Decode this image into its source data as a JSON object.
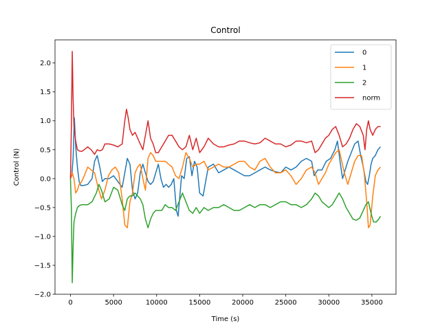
{
  "chart_data": {
    "type": "line",
    "title": "Control",
    "xlabel": "Time (s)",
    "ylabel": "Control (N)",
    "xlim": [
      -1800,
      37800
    ],
    "ylim": [
      -2.0,
      2.4
    ],
    "xticks": [
      0,
      5000,
      10000,
      15000,
      20000,
      25000,
      30000,
      35000
    ],
    "yticks": [
      -2.0,
      -1.5,
      -1.0,
      -0.5,
      0.0,
      0.5,
      1.0,
      1.5,
      2.0
    ],
    "legend": "top-right",
    "grid": false,
    "series": [
      {
        "name": "0",
        "color": "#1f77b4",
        "x": [
          0,
          150,
          300,
          450,
          600,
          800,
          1000,
          1200,
          1500,
          2000,
          2500,
          2800,
          3100,
          3400,
          3700,
          4000,
          4500,
          5000,
          5500,
          6000,
          6300,
          6600,
          6900,
          7200,
          7500,
          7800,
          8100,
          8400,
          8700,
          9000,
          9300,
          9600,
          9900,
          10200,
          10500,
          10800,
          11100,
          11400,
          11700,
          12000,
          12300,
          12500,
          12700,
          12900,
          13200,
          13500,
          13800,
          14100,
          14400,
          14700,
          15000,
          15400,
          16000,
          16600,
          17200,
          17800,
          18400,
          19000,
          19600,
          20200,
          20800,
          21400,
          22000,
          22600,
          23200,
          23800,
          24400,
          25000,
          25600,
          26200,
          26800,
          27400,
          28000,
          28300,
          28700,
          29200,
          29700,
          30200,
          30700,
          31000,
          31300,
          31600,
          31900,
          32200,
          32600,
          33000,
          33400,
          33700,
          34000,
          34300,
          34500,
          34700,
          34900,
          35100,
          35400,
          35700,
          36000
        ],
        "y": [
          0.0,
          0.05,
          0.35,
          1.05,
          0.55,
          0.2,
          -0.05,
          -0.12,
          -0.12,
          -0.1,
          0.0,
          0.3,
          0.4,
          0.2,
          -0.05,
          0.0,
          0.0,
          0.05,
          -0.05,
          -0.15,
          0.1,
          0.35,
          0.25,
          -0.2,
          -0.35,
          -0.25,
          0.1,
          0.25,
          0.1,
          -0.05,
          -0.1,
          -0.05,
          0.1,
          0.25,
          0.0,
          -0.15,
          -0.1,
          -0.15,
          -0.1,
          0.0,
          -0.55,
          -0.65,
          -0.3,
          0.05,
          0.0,
          0.35,
          0.38,
          0.05,
          0.3,
          0.2,
          -0.25,
          -0.3,
          0.2,
          0.25,
          0.1,
          0.15,
          0.2,
          0.15,
          0.1,
          0.05,
          0.05,
          0.1,
          0.15,
          0.2,
          0.15,
          0.12,
          0.1,
          0.2,
          0.15,
          0.2,
          0.3,
          0.35,
          0.3,
          0.05,
          0.15,
          0.15,
          0.3,
          0.35,
          0.5,
          0.65,
          0.3,
          0.0,
          0.15,
          0.3,
          0.45,
          0.6,
          0.65,
          0.4,
          0.2,
          -0.05,
          -0.1,
          0.05,
          0.25,
          0.35,
          0.4,
          0.5,
          0.55
        ]
      },
      {
        "name": "1",
        "color": "#ff7f0e",
        "x": [
          0,
          200,
          400,
          600,
          800,
          1000,
          1300,
          1600,
          2000,
          2400,
          2800,
          3200,
          3600,
          4000,
          4400,
          4800,
          5200,
          5600,
          6000,
          6300,
          6600,
          6900,
          7200,
          7500,
          7800,
          8100,
          8400,
          8700,
          9000,
          9300,
          9600,
          9900,
          10200,
          10600,
          11000,
          11400,
          11800,
          12200,
          12600,
          13000,
          13400,
          13800,
          14200,
          14600,
          15000,
          15500,
          16000,
          16600,
          17200,
          17800,
          18400,
          19000,
          19600,
          20200,
          20800,
          21400,
          22000,
          22600,
          23200,
          23800,
          24400,
          25000,
          25600,
          26200,
          26800,
          27400,
          28000,
          28400,
          28800,
          29200,
          29600,
          30000,
          30400,
          30800,
          31200,
          31500,
          31800,
          32200,
          32600,
          33000,
          33400,
          33800,
          34100,
          34400,
          34600,
          34800,
          35100,
          35400,
          35700,
          36000
        ],
        "y": [
          0.0,
          0.1,
          0.0,
          -0.25,
          -0.2,
          -0.1,
          -0.05,
          0.05,
          0.2,
          0.15,
          0.1,
          -0.15,
          -0.35,
          -0.2,
          0.05,
          0.15,
          0.2,
          0.1,
          -0.35,
          -0.8,
          -0.85,
          -0.4,
          -0.25,
          0.1,
          0.2,
          0.25,
          0.0,
          -0.2,
          0.35,
          0.45,
          0.4,
          0.3,
          0.3,
          0.3,
          0.3,
          0.25,
          0.2,
          0.05,
          0.0,
          0.2,
          0.45,
          0.35,
          0.2,
          0.25,
          0.25,
          0.3,
          0.15,
          0.2,
          0.25,
          0.2,
          0.2,
          0.25,
          0.3,
          0.3,
          0.2,
          0.15,
          0.3,
          0.35,
          0.2,
          0.1,
          0.1,
          0.15,
          0.05,
          -0.1,
          0.0,
          0.15,
          0.2,
          0.1,
          -0.1,
          0.0,
          0.1,
          0.25,
          0.35,
          0.45,
          0.5,
          0.3,
          0.1,
          -0.1,
          0.1,
          0.3,
          0.4,
          0.4,
          0.1,
          -0.4,
          -0.85,
          -0.8,
          -0.3,
          0.05,
          0.15,
          0.2
        ]
      },
      {
        "name": "2",
        "color": "#2ca02c",
        "x": [
          0,
          100,
          200,
          300,
          400,
          600,
          800,
          1000,
          1300,
          1600,
          2000,
          2500,
          3000,
          3300,
          3600,
          4000,
          4500,
          5000,
          5500,
          6000,
          6300,
          6600,
          6900,
          7200,
          7500,
          7800,
          8100,
          8400,
          8700,
          9000,
          9300,
          9600,
          9900,
          10200,
          10600,
          11000,
          11400,
          11800,
          12200,
          12600,
          13000,
          13400,
          13800,
          14200,
          14600,
          15000,
          15500,
          16000,
          16600,
          17200,
          17800,
          18400,
          19000,
          19600,
          20200,
          20800,
          21400,
          22000,
          22600,
          23200,
          23800,
          24400,
          25000,
          25600,
          26200,
          26800,
          27400,
          28000,
          28400,
          28800,
          29200,
          29600,
          30000,
          30400,
          30800,
          31200,
          31600,
          32000,
          32400,
          32800,
          33200,
          33600,
          34000,
          34300,
          34600,
          34900,
          35200,
          35500,
          35800,
          36000
        ],
        "y": [
          0.0,
          -0.5,
          -1.8,
          -1.2,
          -0.75,
          -0.6,
          -0.5,
          -0.47,
          -0.45,
          -0.45,
          -0.45,
          -0.4,
          -0.25,
          -0.1,
          -0.2,
          -0.4,
          -0.35,
          -0.15,
          -0.2,
          -0.45,
          -0.55,
          -0.35,
          -0.3,
          -0.3,
          -0.25,
          -0.3,
          -0.35,
          -0.45,
          -0.7,
          -0.85,
          -0.7,
          -0.6,
          -0.55,
          -0.55,
          -0.55,
          -0.45,
          -0.5,
          -0.5,
          -0.55,
          -0.4,
          -0.25,
          -0.4,
          -0.55,
          -0.6,
          -0.5,
          -0.6,
          -0.5,
          -0.55,
          -0.5,
          -0.5,
          -0.45,
          -0.5,
          -0.55,
          -0.55,
          -0.5,
          -0.45,
          -0.5,
          -0.45,
          -0.45,
          -0.5,
          -0.45,
          -0.4,
          -0.4,
          -0.45,
          -0.45,
          -0.5,
          -0.45,
          -0.35,
          -0.25,
          -0.3,
          -0.4,
          -0.45,
          -0.5,
          -0.45,
          -0.35,
          -0.25,
          -0.35,
          -0.5,
          -0.6,
          -0.7,
          -0.72,
          -0.68,
          -0.55,
          -0.45,
          -0.4,
          -0.6,
          -0.75,
          -0.75,
          -0.7,
          -0.65
        ]
      },
      {
        "name": "norm",
        "color": "#d62728",
        "x": [
          0,
          100,
          200,
          300,
          400,
          600,
          800,
          1000,
          1300,
          1600,
          2000,
          2400,
          2800,
          3100,
          3400,
          3700,
          4000,
          4500,
          5000,
          5500,
          6000,
          6300,
          6500,
          6700,
          6900,
          7200,
          7500,
          7800,
          8100,
          8400,
          8700,
          9000,
          9300,
          9600,
          9900,
          10200,
          10600,
          11000,
          11400,
          11800,
          12200,
          12600,
          13000,
          13400,
          13800,
          14200,
          14600,
          15000,
          15500,
          16000,
          16600,
          17200,
          17800,
          18400,
          19000,
          19600,
          20200,
          20800,
          21400,
          22000,
          22600,
          23200,
          23800,
          24400,
          25000,
          25600,
          26200,
          26800,
          27400,
          28000,
          28400,
          28800,
          29200,
          29600,
          30000,
          30400,
          30800,
          31200,
          31600,
          32000,
          32400,
          32800,
          33200,
          33600,
          34000,
          34200,
          34400,
          34600,
          34800,
          35100,
          35400,
          35700,
          36000
        ],
        "y": [
          0.0,
          0.9,
          2.2,
          1.4,
          0.9,
          0.65,
          0.5,
          0.48,
          0.47,
          0.5,
          0.55,
          0.5,
          0.42,
          0.5,
          0.48,
          0.5,
          0.6,
          0.6,
          0.58,
          0.55,
          0.6,
          1.0,
          1.2,
          1.05,
          0.85,
          0.75,
          0.8,
          0.7,
          0.6,
          0.5,
          0.75,
          1.0,
          0.7,
          0.6,
          0.45,
          0.45,
          0.55,
          0.65,
          0.75,
          0.75,
          0.65,
          0.55,
          0.5,
          0.55,
          0.75,
          0.5,
          0.7,
          0.45,
          0.55,
          0.7,
          0.6,
          0.55,
          0.55,
          0.58,
          0.6,
          0.65,
          0.65,
          0.62,
          0.6,
          0.62,
          0.7,
          0.65,
          0.6,
          0.6,
          0.55,
          0.58,
          0.65,
          0.65,
          0.62,
          0.65,
          0.45,
          0.5,
          0.6,
          0.7,
          0.75,
          0.85,
          0.9,
          0.75,
          0.55,
          0.6,
          0.7,
          0.85,
          0.95,
          0.9,
          0.75,
          0.5,
          0.85,
          1.0,
          0.85,
          0.75,
          0.85,
          0.9,
          0.9
        ]
      }
    ]
  }
}
